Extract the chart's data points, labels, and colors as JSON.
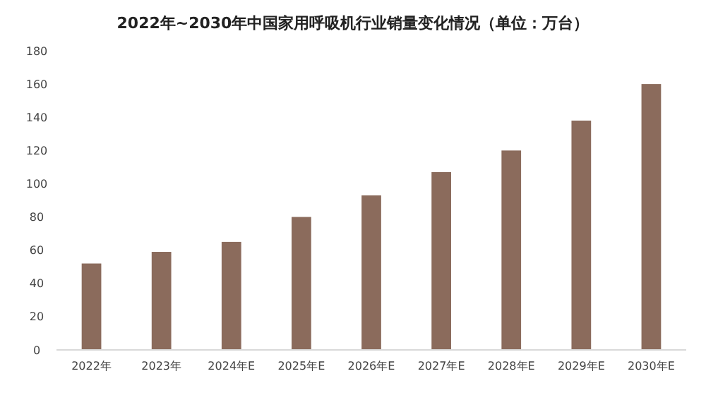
{
  "chart_data": {
    "type": "bar",
    "title": "2022年~2030年中国家用呼吸机行业销量变化情况（单位：万台）",
    "categories": [
      "2022年",
      "2023年",
      "2024年E",
      "2025年E",
      "2026年E",
      "2027年E",
      "2028年E",
      "2029年E",
      "2030年E"
    ],
    "values": [
      52,
      59,
      65,
      80,
      93,
      107,
      120,
      138,
      160
    ],
    "color": "#8b6b5c",
    "ylim": [
      0,
      180
    ],
    "yticks": [
      0,
      20,
      40,
      60,
      80,
      100,
      120,
      140,
      160,
      180
    ]
  }
}
